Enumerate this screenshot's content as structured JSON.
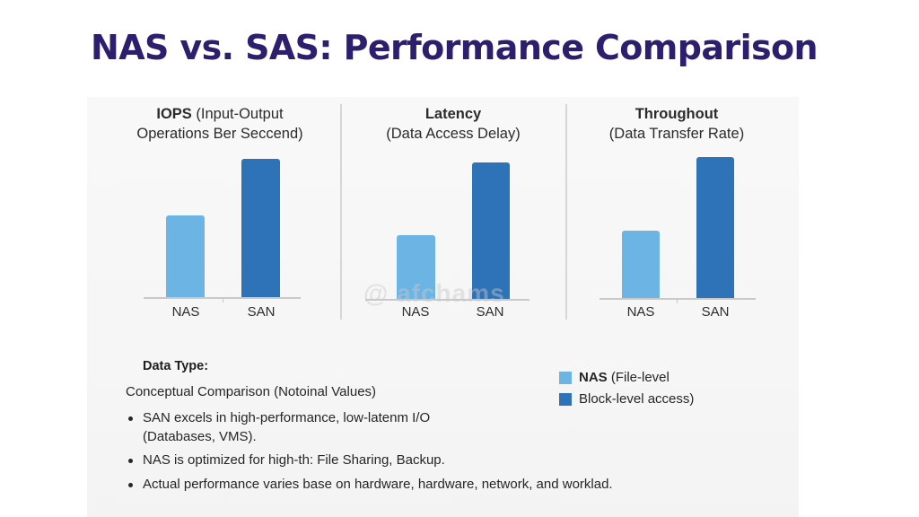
{
  "title": "NAS vs. SAS: Performance Comparison",
  "colors": {
    "title": "#2d1f6e",
    "nas": "#6cb4e4",
    "san": "#2e72b8"
  },
  "panels": [
    {
      "title_bold": "IOPS",
      "title_rest": " (Input-Output",
      "subtitle": "Operations Ber Seccend)",
      "categories": [
        "NAS",
        "SAN"
      ]
    },
    {
      "title_bold": "Latency",
      "title_rest": "",
      "subtitle": "(Data Access Delay)",
      "categories": [
        "NAS",
        "SAN"
      ]
    },
    {
      "title_bold": "Throughout",
      "title_rest": "",
      "subtitle": "(Data Transfer Rate)",
      "categories": [
        "NAS",
        "SAN"
      ]
    }
  ],
  "watermark": "@ afchams",
  "notes": {
    "heading": "Data Type:",
    "subheading": "Conceptual Comparison (Notoinal Values)",
    "bullets": [
      "SAN excels in high-performance, low-latenm I/O (Databases, VMS).",
      "NAS is optimized for high-th: File Sharing, Backup.",
      "Actual performance varies base on hardware, hardware, network, and worklad."
    ]
  },
  "legend": [
    {
      "bold": "NAS",
      "text": " (File-level",
      "color": "#6cb4e4"
    },
    {
      "bold": "",
      "text": "Block-level access)",
      "color": "#2e72b8"
    }
  ],
  "chart_data": [
    {
      "type": "bar",
      "title": "IOPS (Input-Output Operations Ber Seccend)",
      "categories": [
        "NAS",
        "SAN"
      ],
      "values": [
        58,
        98
      ],
      "xlabel": "",
      "ylabel": "",
      "ylim": [
        0,
        100
      ],
      "grid": false,
      "note": "conceptual / notional values, no y-axis shown"
    },
    {
      "type": "bar",
      "title": "Latency (Data Access Delay)",
      "categories": [
        "NAS",
        "SAN"
      ],
      "values": [
        45,
        97
      ],
      "xlabel": "",
      "ylabel": "",
      "ylim": [
        0,
        100
      ],
      "grid": false
    },
    {
      "type": "bar",
      "title": "Throughout (Data Transfer Rate)",
      "categories": [
        "NAS",
        "SAN"
      ],
      "values": [
        48,
        100
      ],
      "xlabel": "",
      "ylabel": "",
      "ylim": [
        0,
        100
      ],
      "grid": false
    }
  ]
}
